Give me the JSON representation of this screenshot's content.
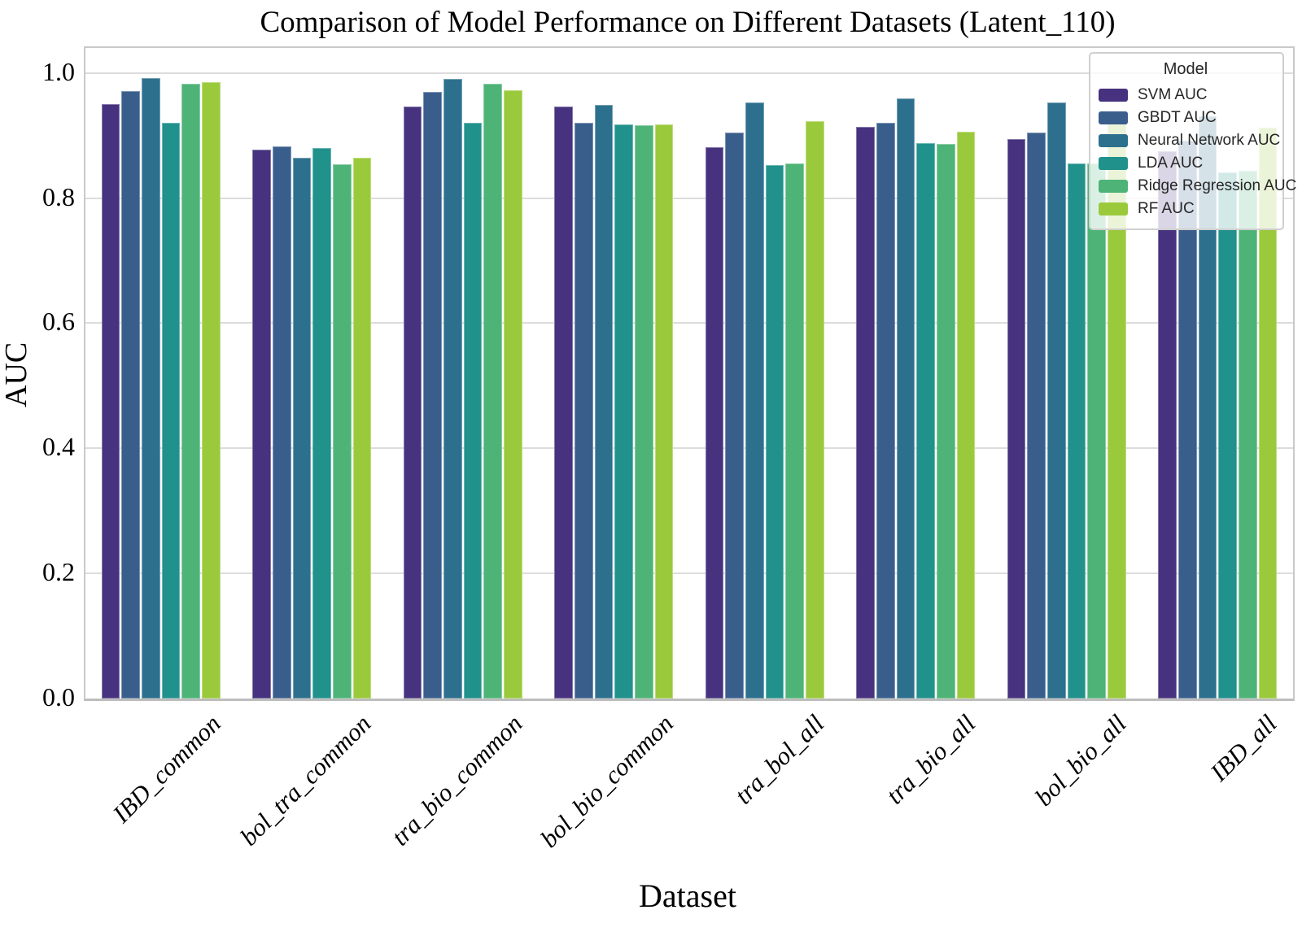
{
  "title": "Comparison of Model Performance on Different Datasets (Latent_110)",
  "legend": {
    "title": "Model"
  },
  "chart_data": {
    "type": "bar",
    "title": "Comparison of Model Performance on Different Datasets (Latent_110)",
    "xlabel": "Dataset",
    "ylabel": "AUC",
    "ylim": [
      0.0,
      1.04
    ],
    "yticks": [
      0.0,
      0.2,
      0.4,
      0.6,
      0.8,
      1.0
    ],
    "ytick_labels": [
      "0.0",
      "0.2",
      "0.4",
      "0.6",
      "0.8",
      "1.0"
    ],
    "grid": true,
    "grid_color": "#dcdcdc",
    "legend_title": "Model",
    "legend_position": "upper right",
    "categories": [
      "IBD_common",
      "bol_tra_common",
      "tra_bio_common",
      "bol_bio_common",
      "tra_bol_all",
      "tra_bio_all",
      "bol_bio_all",
      "IBD_all"
    ],
    "series": [
      {
        "name": "SVM AUC",
        "color": "#46327e",
        "values": [
          0.95,
          0.877,
          0.946,
          0.946,
          0.882,
          0.914,
          0.895,
          0.875
        ]
      },
      {
        "name": "GBDT AUC",
        "color": "#3a5e8c",
        "values": [
          0.971,
          0.883,
          0.97,
          0.921,
          0.905,
          0.921,
          0.905,
          0.892
        ]
      },
      {
        "name": "Neural Network AUC",
        "color": "#2d708e",
        "values": [
          0.992,
          0.865,
          0.99,
          0.949,
          0.953,
          0.959,
          0.953,
          0.931
        ]
      },
      {
        "name": "LDA AUC",
        "color": "#21918c",
        "values": [
          0.921,
          0.88,
          0.921,
          0.918,
          0.853,
          0.888,
          0.856,
          0.841
        ]
      },
      {
        "name": "Ridge Regression AUC",
        "color": "#4eb377",
        "values": [
          0.983,
          0.854,
          0.983,
          0.916,
          0.855,
          0.887,
          0.856,
          0.844
        ]
      },
      {
        "name": "RF AUC",
        "color": "#9bc93c",
        "values": [
          0.985,
          0.865,
          0.972,
          0.918,
          0.923,
          0.906,
          0.92,
          0.913
        ]
      }
    ]
  }
}
